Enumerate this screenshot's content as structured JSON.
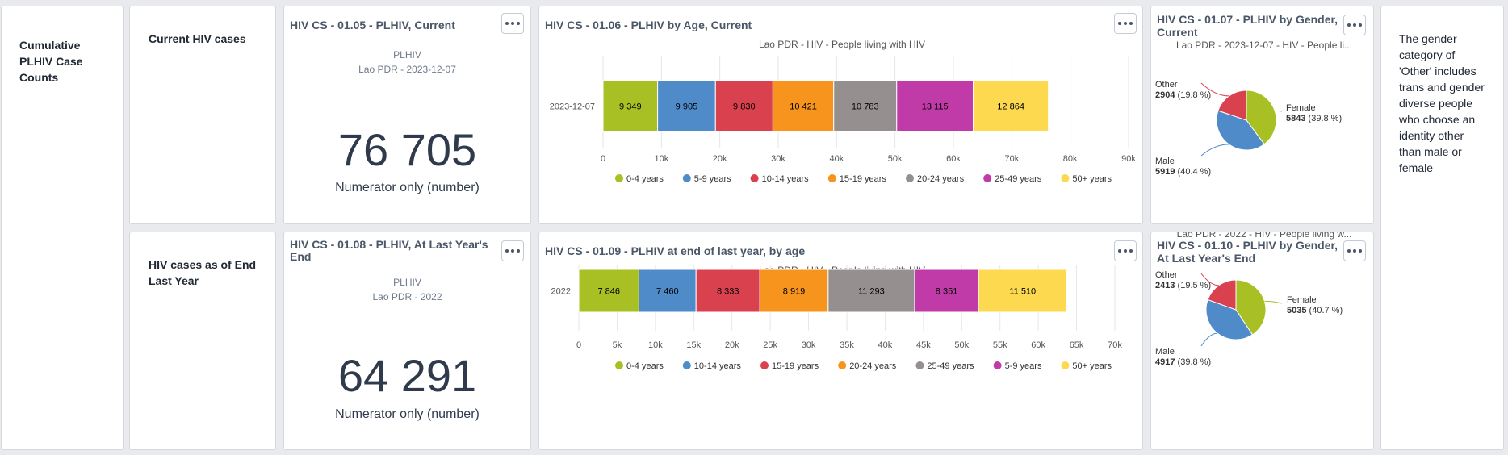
{
  "section_titles": {
    "cumulative": [
      "Cumulative",
      "PLHIV Case",
      "Counts"
    ],
    "current": [
      "Current HIV cases"
    ],
    "end_last_year": [
      "HIV cases as of End",
      "Last Year"
    ]
  },
  "note_lines": [
    "The gender",
    "category of",
    "'Other' includes",
    "trans and gender",
    "diverse people",
    "who choose an",
    "identity other",
    "than male or",
    "female"
  ],
  "sv_current": {
    "title": "HIV CS - 01.05 - PLHIV, Current",
    "label": "PLHIV",
    "sublabel": "Lao PDR - 2023-12-07",
    "value": "76 705",
    "caption": "Numerator only (number)"
  },
  "sv_last": {
    "title_lines": [
      "HIV CS - 01.08 - PLHIV, At Last Year's",
      "End"
    ],
    "label": "PLHIV",
    "sublabel": "Lao PDR - 2022",
    "value": "64 291",
    "caption": "Numerator only (number)"
  },
  "age_current_title": "HIV CS - 01.06 - PLHIV by Age, Current",
  "age_last_title": "HIV CS - 01.09 - PLHIV at end of last year, by age",
  "gender_current_title": [
    "HIV CS - 01.07 - PLHIV by Gender,",
    "Current"
  ],
  "gender_last_title": [
    "HIV CS - 01.10 - PLHIV by Gender,",
    "At Last Year's End"
  ],
  "chart_data": [
    {
      "type": "bar",
      "orientation": "horizontal-stacked",
      "title": "Lao PDR - HIV - People living with HIV",
      "categories": [
        "2023-12-07"
      ],
      "series": [
        {
          "name": "0-4 years",
          "color": "#a8c023",
          "values": [
            9349
          ],
          "label": "9 349"
        },
        {
          "name": "5-9 years",
          "color": "#4f8ac9",
          "values": [
            9905
          ],
          "label": "9 905"
        },
        {
          "name": "10-14 years",
          "color": "#d9414f",
          "values": [
            9830
          ],
          "label": "9 830"
        },
        {
          "name": "15-19 years",
          "color": "#f7941d",
          "values": [
            10421
          ],
          "label": "10 421"
        },
        {
          "name": "20-24 years",
          "color": "#958f8f",
          "values": [
            10783
          ],
          "label": "10 783"
        },
        {
          "name": "25-49 years",
          "color": "#c03ba8",
          "values": [
            13115
          ],
          "label": "13 115"
        },
        {
          "name": "50+ years",
          "color": "#fdd94f",
          "values": [
            12864
          ],
          "label": "12 864"
        }
      ],
      "xlim": [
        0,
        90000
      ],
      "xticks": [
        "0",
        "10k",
        "20k",
        "30k",
        "40k",
        "50k",
        "60k",
        "70k",
        "80k",
        "90k"
      ],
      "legend": "bottom"
    },
    {
      "type": "bar",
      "orientation": "horizontal-stacked",
      "title": "Lao PDR - HIV - People living with HIV",
      "categories": [
        "2022"
      ],
      "series": [
        {
          "name": "0-4 years",
          "color": "#a8c023",
          "values": [
            7846
          ],
          "label": "7 846"
        },
        {
          "name": "10-14 years",
          "color": "#4f8ac9",
          "values": [
            7460
          ],
          "label": "7 460"
        },
        {
          "name": "15-19 years",
          "color": "#d9414f",
          "values": [
            8333
          ],
          "label": "8 333"
        },
        {
          "name": "20-24 years",
          "color": "#f7941d",
          "values": [
            8919
          ],
          "label": "8 919"
        },
        {
          "name": "25-49 years",
          "color": "#958f8f",
          "values": [
            11293
          ],
          "label": "11 293"
        },
        {
          "name": "5-9 years",
          "color": "#c03ba8",
          "values": [
            8351
          ],
          "label": "8 351"
        },
        {
          "name": "50+ years",
          "color": "#fdd94f",
          "values": [
            11510
          ],
          "label": "11 510"
        }
      ],
      "xlim": [
        0,
        70000
      ],
      "xticks": [
        "0",
        "5k",
        "10k",
        "15k",
        "20k",
        "25k",
        "30k",
        "35k",
        "40k",
        "45k",
        "50k",
        "55k",
        "60k",
        "65k",
        "70k"
      ],
      "legend": "bottom"
    },
    {
      "type": "pie",
      "title": "Lao PDR - 2023-12-07 - HIV - People li...",
      "slices": [
        {
          "name": "Female",
          "value": 5843,
          "pct": "(39.8 %)",
          "color": "#a8c023"
        },
        {
          "name": "Male",
          "value": 5919,
          "pct": "(40.4 %)",
          "color": "#4f8ac9"
        },
        {
          "name": "Other",
          "value": 2904,
          "pct": "(19.8 %)",
          "color": "#d9414f"
        }
      ]
    },
    {
      "type": "pie",
      "title": "Lao PDR - 2022 - HIV - People living w...",
      "slices": [
        {
          "name": "Female",
          "value": 5035,
          "pct": "(40.7 %)",
          "color": "#a8c023"
        },
        {
          "name": "Male",
          "value": 4917,
          "pct": "(39.8 %)",
          "color": "#4f8ac9"
        },
        {
          "name": "Other",
          "value": 2413,
          "pct": "(19.5 %)",
          "color": "#d9414f"
        }
      ]
    }
  ]
}
